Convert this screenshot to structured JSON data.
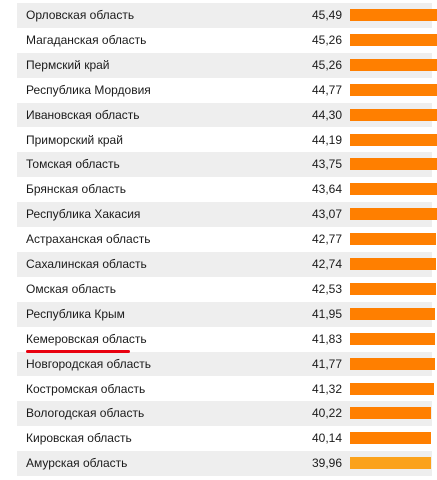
{
  "chart_data": {
    "type": "bar",
    "orientation": "horizontal",
    "categories": [
      "Орловская область",
      "Магаданская область",
      "Пермский край",
      "Республика Мордовия",
      "Ивановская область",
      "Приморский край",
      "Томская область",
      "Брянская область",
      "Республика Хакасия",
      "Астраханская область",
      "Сахалинская область",
      "Омская область",
      "Республика Крым",
      "Кемеровская область",
      "Новгородская область",
      "Костромская область",
      "Вологодская область",
      "Кировская область",
      "Амурская область"
    ],
    "values": [
      45.49,
      45.26,
      45.26,
      44.77,
      44.3,
      44.19,
      43.75,
      43.64,
      43.07,
      42.77,
      42.74,
      42.53,
      41.95,
      41.83,
      41.77,
      41.32,
      40.22,
      40.14,
      39.96
    ],
    "value_labels": [
      "45,49",
      "45,26",
      "45,26",
      "44,77",
      "44,30",
      "44,19",
      "43,75",
      "43,64",
      "43,07",
      "42,77",
      "42,74",
      "42,53",
      "41,95",
      "41,83",
      "41,77",
      "41,32",
      "40,22",
      "40,14",
      "39,96"
    ],
    "title": "",
    "xlabel": "",
    "ylabel": "",
    "bar_color": "#ff7f00",
    "last_bar_color": "#fba21b",
    "highlight": "Кемеровская область",
    "highlight_color": "#e8000f"
  }
}
